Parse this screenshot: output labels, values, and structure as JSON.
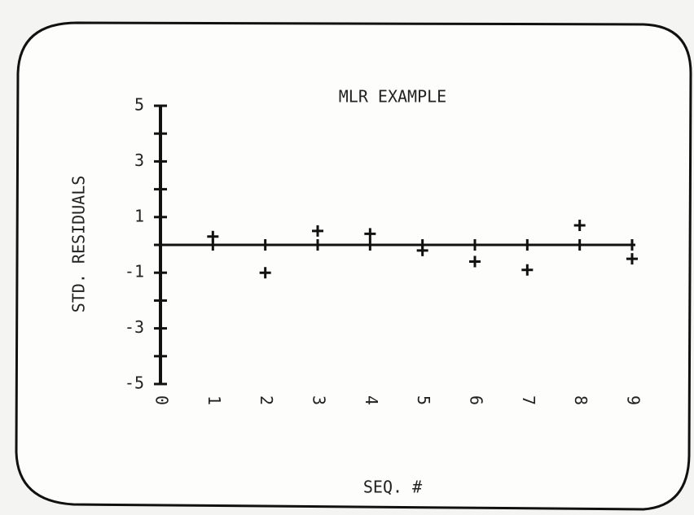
{
  "chart_data": {
    "type": "scatter",
    "title": "MLR EXAMPLE",
    "xlabel": "SEQ. #",
    "ylabel": "STD. RESIDUALS",
    "series": [
      {
        "name": null,
        "color": "#111111",
        "x": [
          1,
          2,
          3,
          4,
          5,
          6,
          7,
          8,
          9
        ],
        "values": [
          0.3,
          -1.0,
          0.5,
          0.4,
          -0.2,
          -0.6,
          -0.9,
          0.7,
          -0.5
        ]
      }
    ],
    "xlim": [
      0,
      9
    ],
    "xticks": [
      0,
      1,
      2,
      3,
      4,
      5,
      6,
      7,
      8,
      9
    ],
    "ylim": [
      -5,
      5
    ],
    "yticks": [
      -5,
      -3,
      -1,
      1,
      3,
      5
    ],
    "yminorticks": [
      -4,
      -2,
      0,
      2,
      4
    ]
  }
}
